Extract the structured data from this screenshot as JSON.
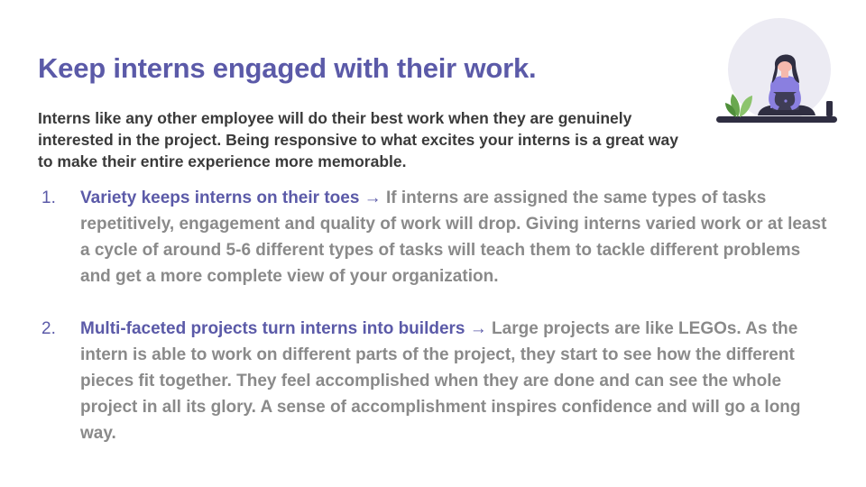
{
  "slide": {
    "title": "Keep interns engaged with their work.",
    "intro": "Interns like any other employee will do their best work when they are genuinely interested in the project. Being responsive to what excites your interns is a great way to make their entire experience more memorable.",
    "points": [
      {
        "number": "1.",
        "heading": "Variety keeps interns on their toes",
        "arrow": "→",
        "body": "If interns are assigned the same types of tasks repetitively, engagement and quality of work will drop. Giving interns varied work or at least a cycle of around 5-6 different types of tasks will teach them to tackle different problems and get a more complete view of your organization."
      },
      {
        "number": "2.",
        "heading": "Multi-faceted projects turn interns into builders",
        "arrow": "→",
        "body": "Large projects are like LEGOs. As the intern is able to work on different parts of the project, they start to see how the different pieces fit together. They feel accomplished when they are done and can see the whole project in all its glory. A sense of accomplishment inspires confidence and will go a long way."
      }
    ]
  },
  "illustration": {
    "icon": "person-with-laptop-icon",
    "colors": {
      "backdrop": "#ecebf3",
      "shirt": "#8a7fe0",
      "hair": "#2f2e41",
      "skin": "#f6b9ad",
      "laptop": "#3f3d56",
      "plant": "#6aa84f",
      "ground": "#2f2e41"
    }
  },
  "theme": {
    "accent": "#5b5aa8",
    "intro_text": "#3a3a3a",
    "body_text": "#8a8a8a"
  }
}
